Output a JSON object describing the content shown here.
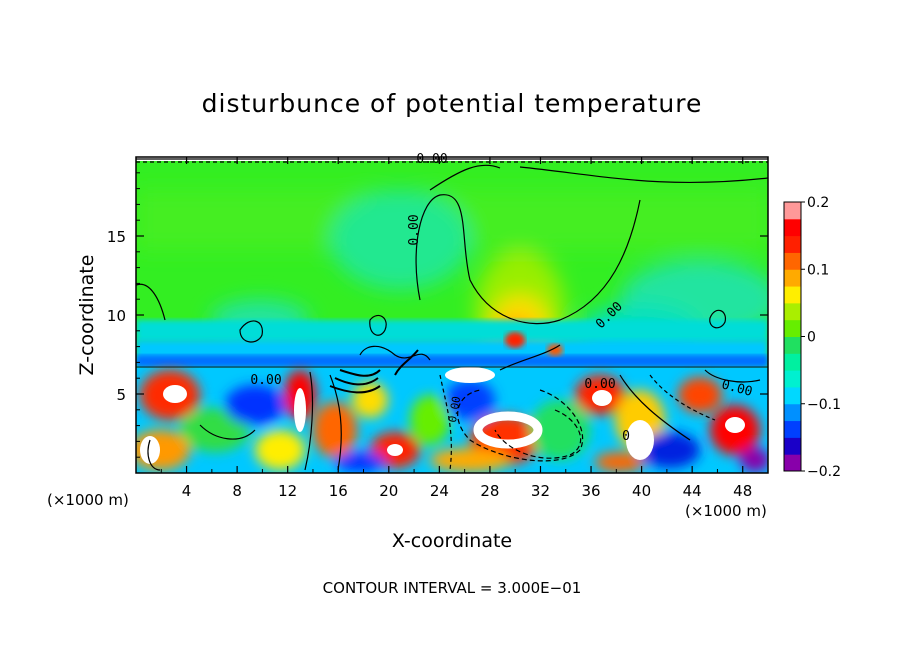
{
  "chart_data": {
    "type": "heatmap",
    "title": "disturbunce of potential temperature",
    "xlabel": "X-coordinate",
    "ylabel": "Z-coordinate",
    "x_unit": "(×1000 m)",
    "y_unit": "(×1000 m)",
    "xlim": [
      0,
      50
    ],
    "ylim": [
      0,
      20
    ],
    "x_ticks": [
      4,
      8,
      12,
      16,
      20,
      24,
      28,
      32,
      36,
      40,
      44,
      48
    ],
    "y_ticks": [
      5,
      10,
      15
    ],
    "colorbar": {
      "range": [
        -0.2,
        0.2
      ],
      "ticks": [
        "0.2",
        "0.1",
        "0",
        "−0.1",
        "−0.2"
      ],
      "colors": [
        "#8800aa",
        "#1a00c8",
        "#0040ff",
        "#0090ff",
        "#00d8ff",
        "#00f0d0",
        "#00f0a0",
        "#20e060",
        "#66ee00",
        "#aaee00",
        "#ffee00",
        "#ffaa00",
        "#ff6600",
        "#ff2000",
        "#ff0000",
        "#ff9999"
      ]
    },
    "contour_labels": [
      "0.00",
      "0.00",
      "0.00",
      "0.00",
      "0.00",
      "0.00",
      "0.00",
      "0"
    ],
    "footer": "CONTOUR INTERVAL = 3.000E−01"
  }
}
